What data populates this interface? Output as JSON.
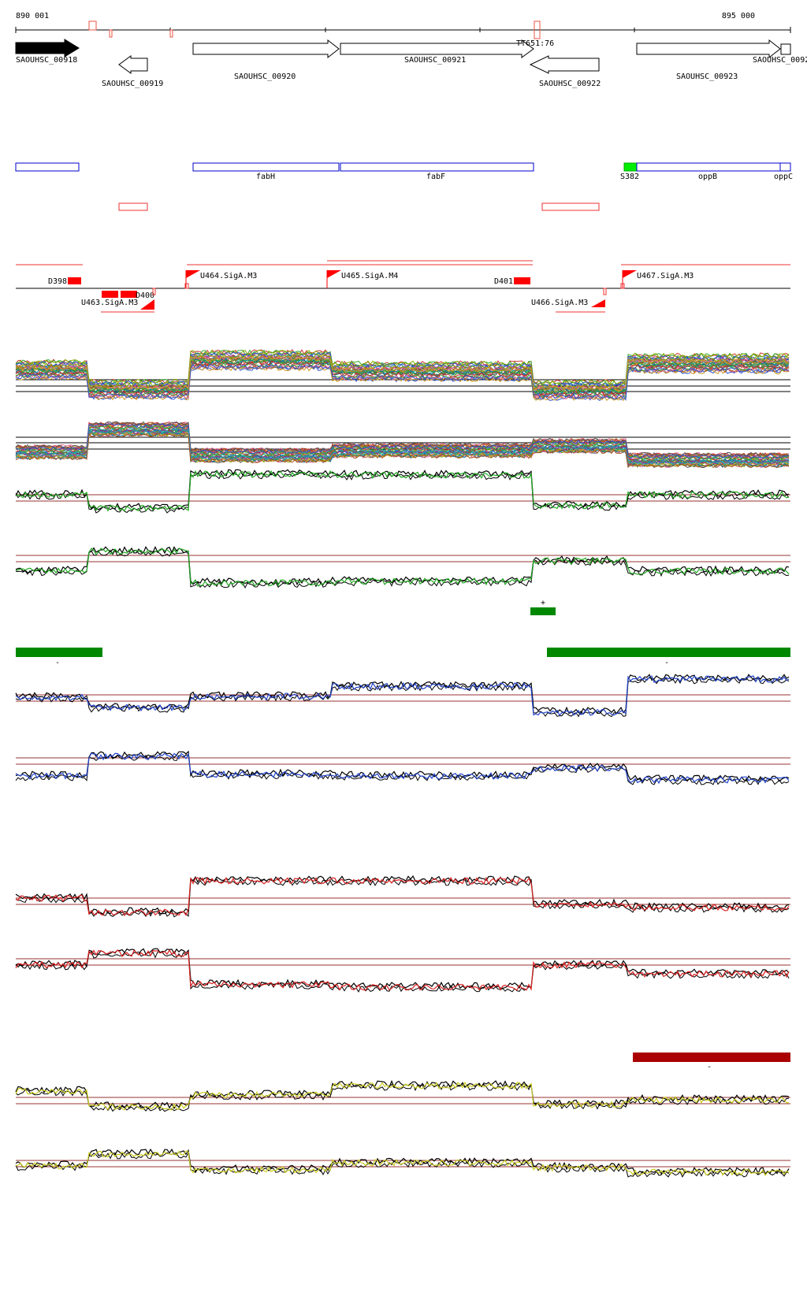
{
  "ruler": {
    "start_label": "890 001",
    "end_label": "895 000"
  },
  "genes": [
    {
      "id": "SAOUHSC_00918",
      "label": "SAOUHSC_00918",
      "strand": "+",
      "filled": true
    },
    {
      "id": "SAOUHSC_00919",
      "label": "SAOUHSC_00919",
      "strand": "-",
      "filled": false
    },
    {
      "id": "SAOUHSC_00920",
      "label": "SAOUHSC_00920",
      "strand": "+",
      "filled": false
    },
    {
      "id": "SAOUHSC_00921",
      "label": "SAOUHSC_00921",
      "strand": "+",
      "filled": false
    },
    {
      "id": "SAOUHSC_00922",
      "label": "SAOUHSC_00922",
      "strand": "-",
      "filled": false
    },
    {
      "id": "SAOUHSC_00923",
      "label": "SAOUHSC_00923",
      "strand": "+",
      "filled": false
    },
    {
      "id": "SAOUHSC_0092x",
      "label": "SAOUHSC_0092",
      "strand": "+",
      "filled": false
    }
  ],
  "terminator_label": "TT651:76",
  "annotations": [
    {
      "label": ""
    },
    {
      "label": "fabH"
    },
    {
      "label": "fabF"
    },
    {
      "label": "oppB"
    },
    {
      "label": "oppC"
    }
  ],
  "green_feature_label": "S382",
  "down_features": [
    "D398",
    "D400",
    "D401"
  ],
  "upstream_features": [
    "U463.SigA.M3",
    "U464.SigA.M3",
    "U465.SigA.M4",
    "U466.SigA.M3",
    "U467.SigA.M3"
  ],
  "strand_markers": {
    "plus": "+",
    "minus": "-"
  },
  "colors": {
    "gene_outline": "#000000",
    "annotation_blue": "#0000cc",
    "feature_red": "#ff0000",
    "green_bar": "#008800",
    "dark_red_bar": "#aa0000",
    "track_green": "#22aa22",
    "track_blue": "#2244cc",
    "track_red": "#dd2222",
    "track_yellow": "#cccc22",
    "threshold": "#993333"
  }
}
